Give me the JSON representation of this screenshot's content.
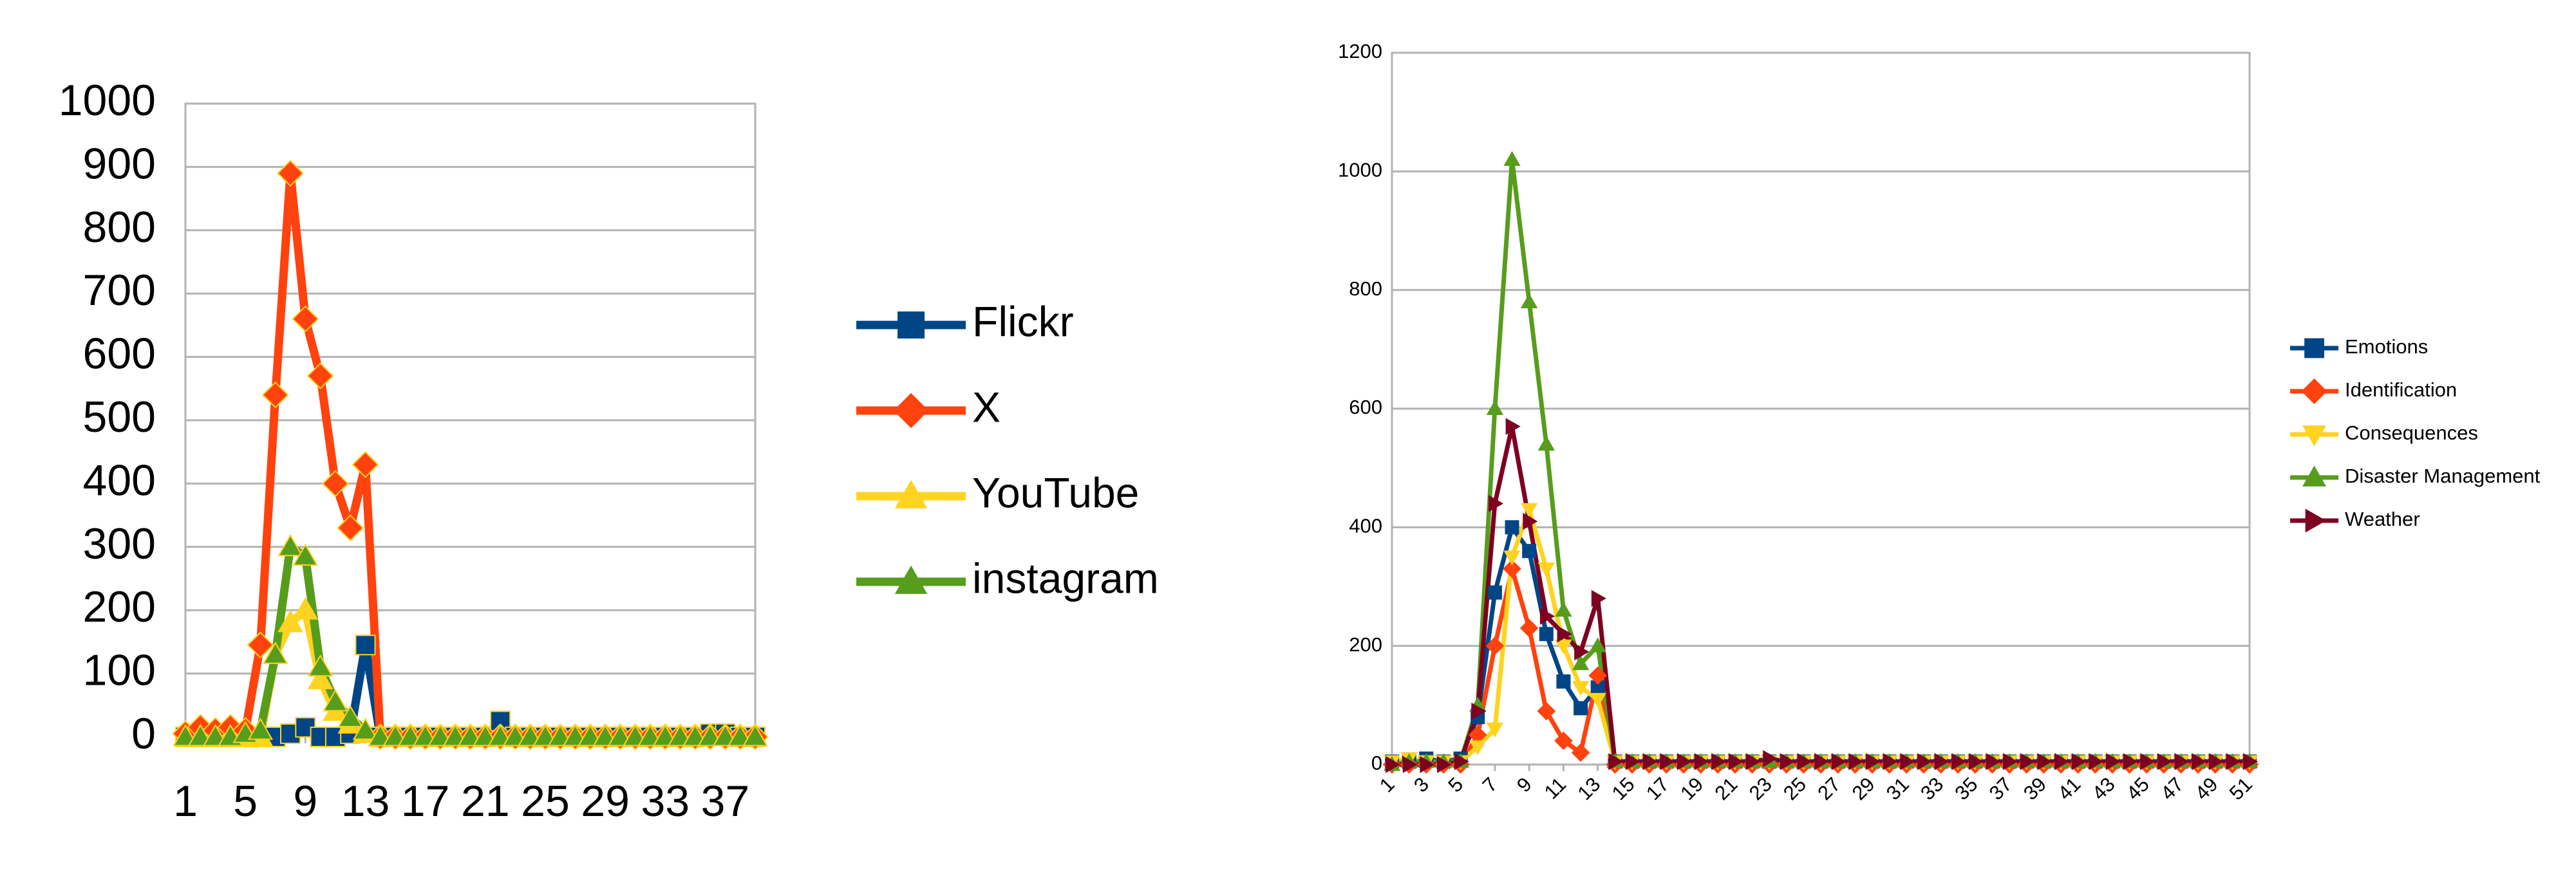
{
  "chart_data": [
    {
      "type": "line",
      "x": [
        1,
        2,
        3,
        4,
        5,
        6,
        7,
        8,
        9,
        10,
        11,
        12,
        13,
        14,
        15,
        16,
        17,
        18,
        19,
        20,
        21,
        22,
        23,
        24,
        25,
        26,
        27,
        28,
        29,
        30,
        31,
        32,
        33,
        34,
        35,
        36,
        37,
        38,
        39
      ],
      "xlim": [
        1,
        39
      ],
      "xticks": [
        1,
        5,
        9,
        13,
        17,
        21,
        25,
        29,
        33,
        37
      ],
      "ylim": [
        0,
        1000
      ],
      "yticks": [
        0,
        100,
        200,
        300,
        400,
        500,
        600,
        700,
        800,
        900,
        1000
      ],
      "grid": true,
      "legend": "right",
      "series": [
        {
          "name": "Flickr",
          "color": "#004586",
          "marker": "square",
          "values": [
            0,
            0,
            0,
            0,
            0,
            0,
            0,
            5,
            15,
            0,
            0,
            5,
            145,
            0,
            0,
            0,
            0,
            0,
            0,
            0,
            0,
            25,
            0,
            0,
            0,
            0,
            0,
            0,
            0,
            0,
            0,
            0,
            0,
            0,
            0,
            5,
            5,
            0,
            0
          ]
        },
        {
          "name": "X",
          "color": "#ff420e",
          "marker": "diamond",
          "values": [
            5,
            15,
            10,
            15,
            10,
            145,
            540,
            890,
            660,
            570,
            400,
            330,
            430,
            0,
            0,
            0,
            0,
            0,
            0,
            0,
            0,
            0,
            0,
            0,
            0,
            0,
            0,
            0,
            0,
            0,
            0,
            0,
            0,
            0,
            0,
            0,
            0,
            0,
            0
          ]
        },
        {
          "name": "YouTube",
          "color": "#ffd320",
          "marker": "triangle",
          "values": [
            0,
            0,
            0,
            0,
            0,
            0,
            130,
            180,
            200,
            90,
            40,
            20,
            5,
            0,
            0,
            0,
            0,
            0,
            0,
            0,
            0,
            0,
            0,
            0,
            0,
            0,
            0,
            0,
            0,
            0,
            0,
            0,
            0,
            0,
            0,
            0,
            0,
            0,
            0
          ]
        },
        {
          "name": "instagram",
          "color": "#579d1c",
          "marker": "triangle",
          "values": [
            0,
            0,
            0,
            0,
            5,
            10,
            130,
            300,
            285,
            110,
            55,
            30,
            10,
            0,
            0,
            0,
            0,
            0,
            0,
            0,
            0,
            0,
            0,
            0,
            0,
            0,
            0,
            0,
            0,
            0,
            0,
            0,
            0,
            0,
            0,
            0,
            0,
            0,
            0
          ]
        }
      ]
    },
    {
      "type": "line",
      "x": [
        1,
        2,
        3,
        4,
        5,
        6,
        7,
        8,
        9,
        10,
        11,
        12,
        13,
        14,
        15,
        16,
        17,
        18,
        19,
        20,
        21,
        22,
        23,
        24,
        25,
        26,
        27,
        28,
        29,
        30,
        31,
        32,
        33,
        34,
        35,
        36,
        37,
        38,
        39,
        40,
        41,
        42,
        43,
        44,
        45,
        46,
        47,
        48,
        49,
        50,
        51
      ],
      "xlim": [
        1,
        51
      ],
      "xticks": [
        1,
        3,
        5,
        7,
        9,
        11,
        13,
        15,
        17,
        19,
        21,
        23,
        25,
        27,
        29,
        31,
        33,
        35,
        37,
        39,
        41,
        43,
        45,
        47,
        49,
        51
      ],
      "ylim": [
        0,
        1200
      ],
      "yticks": [
        0,
        200,
        400,
        600,
        800,
        1000,
        1200
      ],
      "grid": true,
      "legend": "right",
      "series": [
        {
          "name": "Emotions",
          "color": "#004586",
          "marker": "square",
          "values": [
            5,
            5,
            10,
            5,
            10,
            80,
            290,
            400,
            360,
            220,
            140,
            95,
            130,
            5,
            5,
            5,
            5,
            5,
            5,
            5,
            5,
            5,
            5,
            5,
            5,
            5,
            5,
            5,
            5,
            5,
            5,
            5,
            5,
            5,
            5,
            5,
            5,
            5,
            5,
            5,
            5,
            5,
            5,
            5,
            5,
            5,
            5,
            5,
            5,
            5,
            5
          ]
        },
        {
          "name": "Identification",
          "color": "#ff420e",
          "marker": "diamond",
          "values": [
            0,
            0,
            0,
            0,
            0,
            50,
            200,
            330,
            230,
            90,
            40,
            20,
            150,
            0,
            0,
            0,
            0,
            0,
            0,
            0,
            0,
            0,
            0,
            0,
            0,
            0,
            0,
            0,
            0,
            0,
            0,
            0,
            0,
            0,
            0,
            0,
            0,
            0,
            0,
            0,
            0,
            0,
            0,
            0,
            0,
            0,
            0,
            0,
            0,
            0,
            0
          ]
        },
        {
          "name": "Consequences",
          "color": "#ffd320",
          "marker": "triangle-down",
          "values": [
            5,
            10,
            5,
            5,
            5,
            30,
            60,
            350,
            430,
            330,
            200,
            130,
            110,
            5,
            5,
            5,
            5,
            5,
            5,
            5,
            5,
            5,
            5,
            5,
            5,
            5,
            5,
            5,
            5,
            5,
            5,
            5,
            5,
            5,
            5,
            5,
            5,
            5,
            5,
            5,
            5,
            5,
            5,
            5,
            5,
            5,
            5,
            5,
            5,
            5,
            5
          ]
        },
        {
          "name": "Disaster Management",
          "color": "#579d1c",
          "marker": "triangle",
          "values": [
            0,
            5,
            5,
            5,
            5,
            100,
            600,
            1020,
            780,
            540,
            260,
            170,
            200,
            5,
            5,
            5,
            5,
            5,
            5,
            5,
            5,
            5,
            5,
            5,
            5,
            5,
            5,
            5,
            5,
            5,
            5,
            5,
            5,
            5,
            5,
            5,
            5,
            5,
            5,
            5,
            5,
            5,
            5,
            5,
            5,
            5,
            5,
            5,
            5,
            5,
            5
          ]
        },
        {
          "name": "Weather",
          "color": "#7e0021",
          "marker": "triangle-right",
          "values": [
            0,
            0,
            0,
            0,
            5,
            90,
            440,
            570,
            410,
            250,
            220,
            190,
            280,
            5,
            5,
            5,
            5,
            5,
            5,
            5,
            5,
            5,
            10,
            5,
            5,
            5,
            5,
            5,
            5,
            5,
            5,
            5,
            5,
            5,
            5,
            5,
            5,
            5,
            5,
            5,
            5,
            5,
            5,
            5,
            5,
            5,
            5,
            5,
            5,
            5,
            5
          ]
        }
      ]
    }
  ]
}
